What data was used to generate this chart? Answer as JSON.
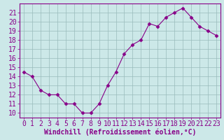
{
  "x": [
    0,
    1,
    2,
    3,
    4,
    5,
    6,
    7,
    8,
    9,
    10,
    11,
    12,
    13,
    14,
    15,
    16,
    17,
    18,
    19,
    20,
    21,
    22,
    23
  ],
  "y": [
    14.5,
    14.0,
    12.5,
    12.0,
    12.0,
    11.0,
    11.0,
    10.0,
    10.0,
    11.0,
    13.0,
    14.5,
    16.5,
    17.5,
    18.0,
    19.8,
    19.5,
    20.5,
    21.0,
    21.5,
    20.5,
    19.5,
    19.0,
    18.5
  ],
  "line_color": "#880088",
  "marker": "D",
  "marker_size": 2.5,
  "bg_color": "#cce8e8",
  "grid_color": "#99bbbb",
  "xlabel": "Windchill (Refroidissement éolien,°C)",
  "xlabel_color": "#880088",
  "tick_color": "#880088",
  "spine_color": "#880088",
  "ylim": [
    9.5,
    22
  ],
  "xlim": [
    -0.5,
    23.5
  ],
  "yticks": [
    10,
    11,
    12,
    13,
    14,
    15,
    16,
    17,
    18,
    19,
    20,
    21
  ],
  "xticks": [
    0,
    1,
    2,
    3,
    4,
    5,
    6,
    7,
    8,
    9,
    10,
    11,
    12,
    13,
    14,
    15,
    16,
    17,
    18,
    19,
    20,
    21,
    22,
    23
  ],
  "tick_fontsize": 7,
  "xlabel_fontsize": 7,
  "xlabel_fontweight": "bold"
}
